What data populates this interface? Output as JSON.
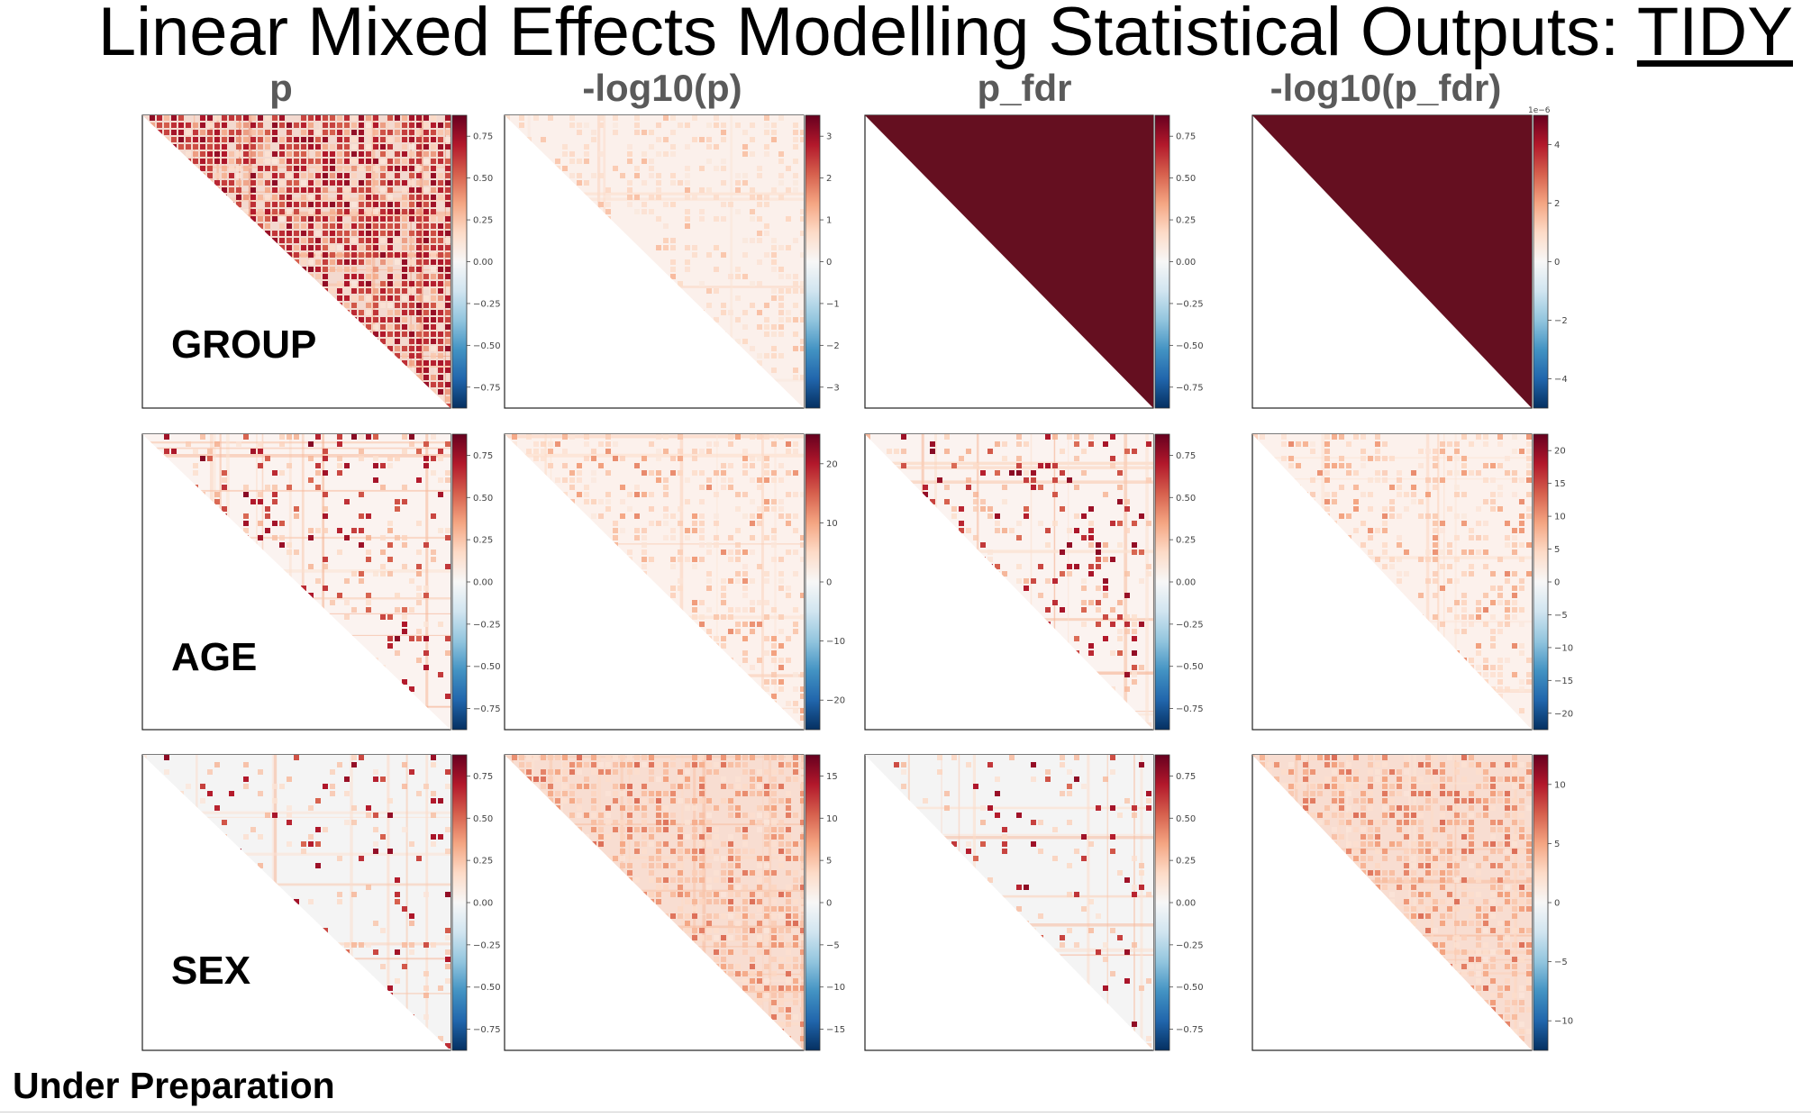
{
  "slide": {
    "title_main": "Linear Mixed Effects Modelling Statistical Outputs: ",
    "title_emphasis": "TIDY",
    "footer": "Under Preparation"
  },
  "columns": [
    "p",
    "-log10(p)",
    "p_fdr",
    "-log10(p_fdr)"
  ],
  "rows": [
    "GROUP",
    "AGE",
    "SEX"
  ],
  "colormap": {
    "name": "RdBu_r",
    "stops": [
      "#053061",
      "#2166ac",
      "#4393c3",
      "#92c5de",
      "#d1e5f0",
      "#f7f7f7",
      "#fddbc7",
      "#f4a582",
      "#d6604d",
      "#b2182b",
      "#67001f"
    ]
  },
  "panels": [
    {
      "row": "GROUP",
      "column": "p",
      "pattern": "dense",
      "colorbar_ticks": [
        "0.75",
        "0.50",
        "0.25",
        "0.00",
        "−0.25",
        "−0.50",
        "−0.75"
      ]
    },
    {
      "row": "GROUP",
      "column": "-log10(p)",
      "pattern": "faint",
      "colorbar_ticks": [
        "3",
        "2",
        "1",
        "0",
        "−1",
        "−2",
        "−3"
      ]
    },
    {
      "row": "GROUP",
      "column": "p_fdr",
      "pattern": "solid",
      "colorbar_ticks": [
        "0.75",
        "0.50",
        "0.25",
        "0.00",
        "−0.25",
        "−0.50",
        "−0.75"
      ]
    },
    {
      "row": "GROUP",
      "column": "-log10(p_fdr)",
      "pattern": "solid",
      "colorbar_offset": "1e−6",
      "colorbar_ticks": [
        "4",
        "2",
        "0",
        "−2",
        "−4"
      ]
    },
    {
      "row": "AGE",
      "column": "p",
      "pattern": "sparse",
      "colorbar_ticks": [
        "0.75",
        "0.50",
        "0.25",
        "0.00",
        "−0.25",
        "−0.50",
        "−0.75"
      ]
    },
    {
      "row": "AGE",
      "column": "-log10(p)",
      "pattern": "light",
      "colorbar_ticks": [
        "20",
        "10",
        "0",
        "−10",
        "−20"
      ]
    },
    {
      "row": "AGE",
      "column": "p_fdr",
      "pattern": "sparse",
      "colorbar_ticks": [
        "0.75",
        "0.50",
        "0.25",
        "0.00",
        "−0.25",
        "−0.50",
        "−0.75"
      ]
    },
    {
      "row": "AGE",
      "column": "-log10(p_fdr)",
      "pattern": "light",
      "colorbar_ticks": [
        "20",
        "15",
        "10",
        "5",
        "0",
        "−5",
        "−10",
        "−15",
        "−20"
      ]
    },
    {
      "row": "SEX",
      "column": "p",
      "pattern": "very-sparse",
      "colorbar_ticks": [
        "0.75",
        "0.50",
        "0.25",
        "0.00",
        "−0.25",
        "−0.50",
        "−0.75"
      ]
    },
    {
      "row": "SEX",
      "column": "-log10(p)",
      "pattern": "medium",
      "colorbar_ticks": [
        "15",
        "10",
        "5",
        "0",
        "−5",
        "−10",
        "−15"
      ]
    },
    {
      "row": "SEX",
      "column": "p_fdr",
      "pattern": "very-sparse",
      "colorbar_ticks": [
        "0.75",
        "0.50",
        "0.25",
        "0.00",
        "−0.25",
        "−0.50",
        "−0.75"
      ]
    },
    {
      "row": "SEX",
      "column": "-log10(p_fdr)",
      "pattern": "medium",
      "colorbar_ticks": [
        "10",
        "5",
        "0",
        "−5",
        "−10"
      ]
    }
  ]
}
